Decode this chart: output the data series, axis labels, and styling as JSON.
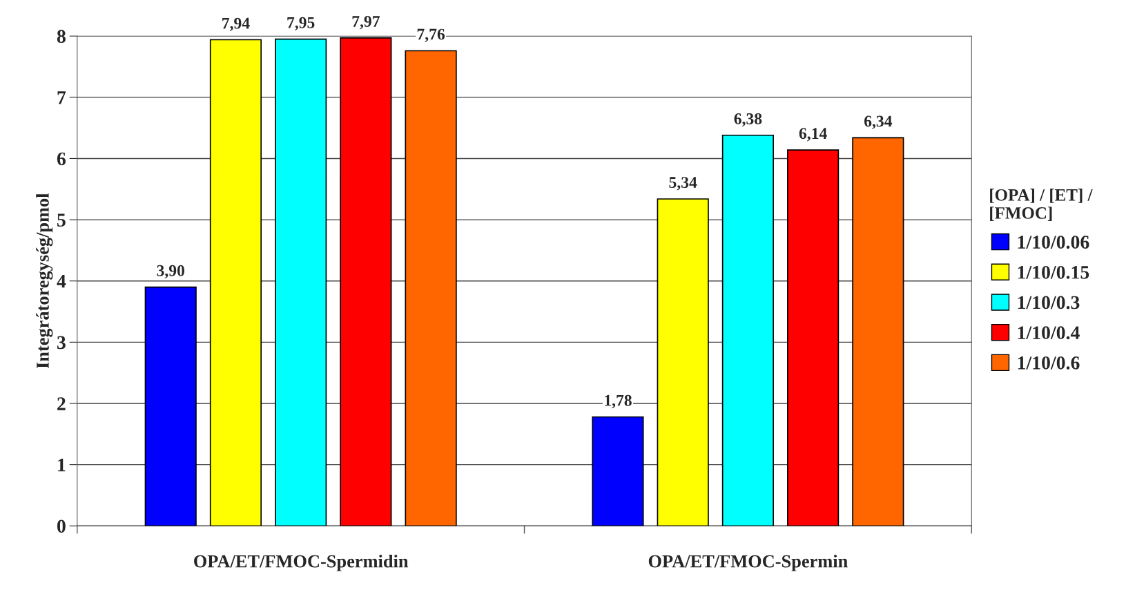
{
  "chart_data": {
    "type": "bar",
    "ylabel": "Integrátoregység/pmol",
    "legend_title": "[OPA] / [ET] / [FMOC]",
    "categories": [
      "OPA/ET/FMOC-Spermidin",
      "OPA/ET/FMOC-Spermin"
    ],
    "series": [
      {
        "name": "1/10/0.06",
        "color": "#0000ff",
        "values": [
          3.9,
          1.78
        ],
        "value_labels": [
          "3,90",
          "1,78"
        ]
      },
      {
        "name": "1/10/0.15",
        "color": "#ffff00",
        "values": [
          7.94,
          5.34
        ],
        "value_labels": [
          "7,94",
          "5,34"
        ]
      },
      {
        "name": "1/10/0.3",
        "color": "#00ffff",
        "values": [
          7.95,
          6.38
        ],
        "value_labels": [
          "7,95",
          "6,38"
        ]
      },
      {
        "name": "1/10/0.4",
        "color": "#ff0000",
        "values": [
          7.97,
          6.14
        ],
        "value_labels": [
          "7,97",
          "6,14"
        ]
      },
      {
        "name": "1/10/0.6",
        "color": "#ff6600",
        "values": [
          7.76,
          6.34
        ],
        "value_labels": [
          "7,76",
          "6,34"
        ]
      }
    ],
    "ylim": [
      0,
      8
    ],
    "yticks": [
      0,
      1,
      2,
      3,
      4,
      5,
      6,
      7,
      8
    ],
    "grid": "y",
    "legend": "right"
  }
}
